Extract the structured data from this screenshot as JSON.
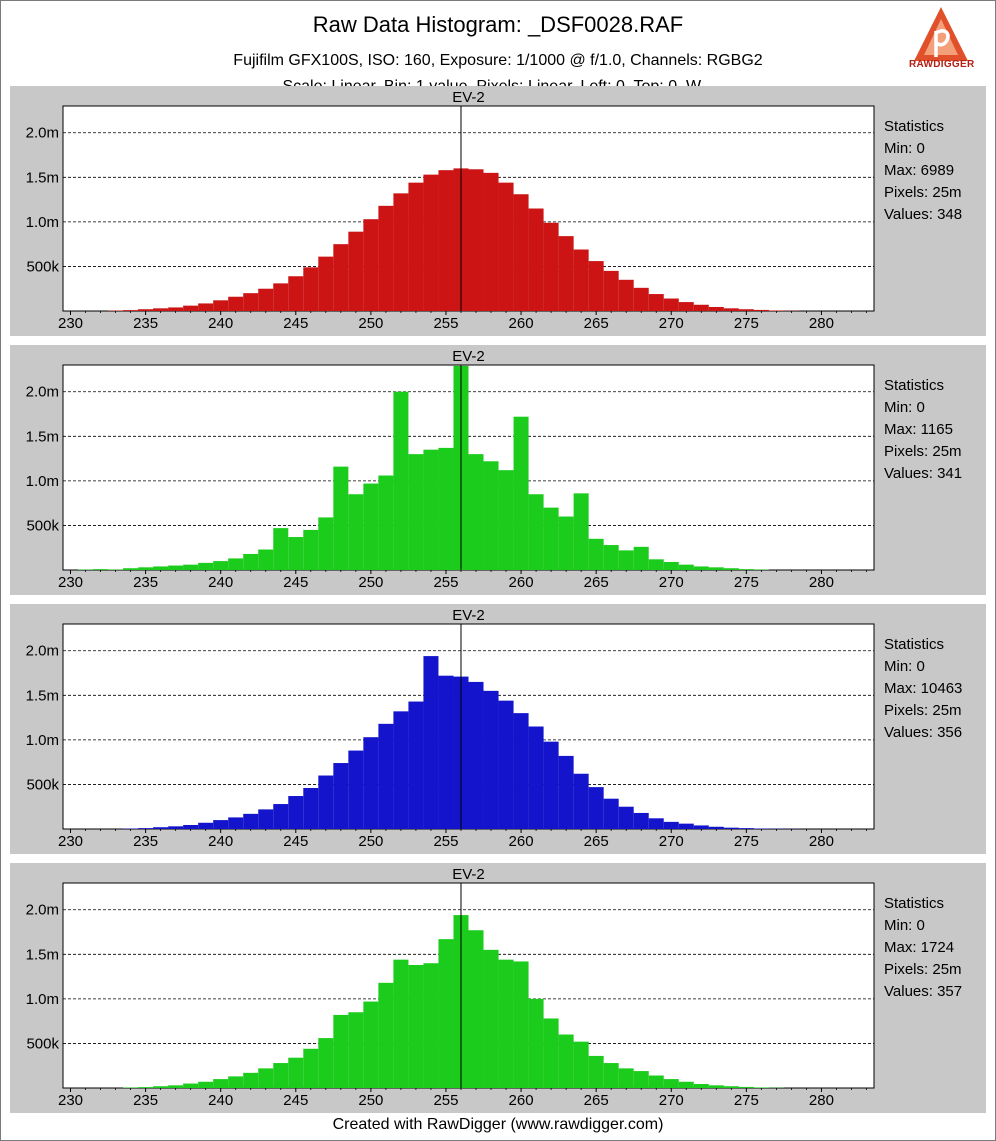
{
  "header": {
    "title": "Raw Data Histogram: _DSF0028.RAF",
    "subtitle": "Fujifilm GFX100S, ISO: 160, Exposure: 1/1000 @ f/1.0, Channels: RGBG2",
    "subtitle2": "Scale: Linear, Bin: 1 value, Pixels: Linear, Left: 0, Top: 0, W..."
  },
  "logo": {
    "text": "RAWDIGGER",
    "icon": "rawdigger-logo-icon",
    "color": "#e0502a"
  },
  "footer": "Created with RawDigger (www.rawdigger.com)",
  "stats_title": "Statistics",
  "chart_data": [
    {
      "type": "bar",
      "channel": "R",
      "title": "EV-2",
      "color": "#cc1414",
      "xlim": [
        229.5,
        283.5
      ],
      "ylim": [
        0,
        2.3
      ],
      "y_unit": "millions",
      "xticks": [
        "230",
        "235",
        "240",
        "245",
        "250",
        "255",
        "260",
        "265",
        "270",
        "275",
        "280"
      ],
      "yticks": [
        "500k",
        "1.0m",
        "1.5m",
        "2.0m"
      ],
      "marker_x": 256,
      "x": [
        233,
        234,
        235,
        236,
        237,
        238,
        239,
        240,
        241,
        242,
        243,
        244,
        245,
        246,
        247,
        248,
        249,
        250,
        251,
        252,
        253,
        254,
        255,
        256,
        257,
        258,
        259,
        260,
        261,
        262,
        263,
        264,
        265,
        266,
        267,
        268,
        269,
        270,
        271,
        272,
        273,
        274,
        275,
        276,
        277,
        278
      ],
      "values": [
        0.005,
        0.01,
        0.02,
        0.03,
        0.04,
        0.06,
        0.085,
        0.12,
        0.16,
        0.2,
        0.25,
        0.31,
        0.39,
        0.49,
        0.61,
        0.75,
        0.89,
        1.03,
        1.18,
        1.32,
        1.44,
        1.53,
        1.58,
        1.6,
        1.59,
        1.55,
        1.44,
        1.31,
        1.15,
        0.99,
        0.84,
        0.69,
        0.56,
        0.45,
        0.35,
        0.26,
        0.19,
        0.14,
        0.1,
        0.07,
        0.045,
        0.03,
        0.02,
        0.012,
        0.006,
        0.003
      ],
      "stats": {
        "min": "Min: 0",
        "max": "Max: 6989",
        "pixels": "Pixels: 25m",
        "values": "Values: 348"
      }
    },
    {
      "type": "bar",
      "channel": "G",
      "title": "EV-2",
      "color": "#1ccc1c",
      "xlim": [
        229.5,
        283.5
      ],
      "ylim": [
        0,
        2.3
      ],
      "y_unit": "millions",
      "xticks": [
        "230",
        "235",
        "240",
        "245",
        "250",
        "255",
        "260",
        "265",
        "270",
        "275",
        "280"
      ],
      "yticks": [
        "500k",
        "1.0m",
        "1.5m",
        "2.0m"
      ],
      "marker_x": 256,
      "x": [
        231,
        232,
        233,
        234,
        235,
        236,
        237,
        238,
        239,
        240,
        241,
        242,
        243,
        244,
        245,
        246,
        247,
        248,
        249,
        250,
        251,
        252,
        253,
        254,
        255,
        256,
        257,
        258,
        259,
        260,
        261,
        262,
        263,
        264,
        265,
        266,
        267,
        268,
        269,
        270,
        271,
        272,
        273,
        274,
        275,
        276
      ],
      "values": [
        0.005,
        0.01,
        0.005,
        0.02,
        0.03,
        0.04,
        0.05,
        0.06,
        0.08,
        0.1,
        0.13,
        0.18,
        0.23,
        0.47,
        0.37,
        0.45,
        0.59,
        1.16,
        0.85,
        0.97,
        1.06,
        2.0,
        1.3,
        1.35,
        1.37,
        2.29,
        1.3,
        1.22,
        1.12,
        1.72,
        0.85,
        0.7,
        0.6,
        0.86,
        0.35,
        0.28,
        0.22,
        0.26,
        0.12,
        0.09,
        0.06,
        0.04,
        0.03,
        0.02,
        0.01,
        0.005
      ],
      "stats": {
        "min": "Min: 0",
        "max": "Max: 1165",
        "pixels": "Pixels: 25m",
        "values": "Values: 341"
      }
    },
    {
      "type": "bar",
      "channel": "B",
      "title": "EV-2",
      "color": "#1414cc",
      "xlim": [
        229.5,
        283.5
      ],
      "ylim": [
        0,
        2.3
      ],
      "y_unit": "millions",
      "xticks": [
        "230",
        "235",
        "240",
        "245",
        "250",
        "255",
        "260",
        "265",
        "270",
        "275",
        "280"
      ],
      "yticks": [
        "500k",
        "1.0m",
        "1.5m",
        "2.0m"
      ],
      "marker_x": 256,
      "x": [
        234,
        235,
        236,
        237,
        238,
        239,
        240,
        241,
        242,
        243,
        244,
        245,
        246,
        247,
        248,
        249,
        250,
        251,
        252,
        253,
        254,
        255,
        256,
        257,
        258,
        259,
        260,
        261,
        262,
        263,
        264,
        265,
        266,
        267,
        268,
        269,
        270,
        271,
        272,
        273,
        274,
        275,
        276,
        277,
        278
      ],
      "values": [
        0.005,
        0.01,
        0.02,
        0.03,
        0.045,
        0.07,
        0.1,
        0.13,
        0.17,
        0.22,
        0.28,
        0.37,
        0.46,
        0.6,
        0.74,
        0.88,
        1.03,
        1.18,
        1.32,
        1.43,
        1.94,
        1.72,
        1.71,
        1.65,
        1.55,
        1.44,
        1.3,
        1.15,
        0.98,
        0.82,
        0.62,
        0.47,
        0.34,
        0.25,
        0.18,
        0.12,
        0.08,
        0.06,
        0.04,
        0.025,
        0.015,
        0.01,
        0.005,
        0.003,
        0.002
      ],
      "stats": {
        "min": "Min: 0",
        "max": "Max: 10463",
        "pixels": "Pixels: 25m",
        "values": "Values: 356"
      }
    },
    {
      "type": "bar",
      "channel": "G2",
      "title": "EV-2",
      "color": "#1ccc1c",
      "xlim": [
        229.5,
        283.5
      ],
      "ylim": [
        0,
        2.3
      ],
      "y_unit": "millions",
      "xticks": [
        "230",
        "235",
        "240",
        "245",
        "250",
        "255",
        "260",
        "265",
        "270",
        "275",
        "280"
      ],
      "yticks": [
        "500k",
        "1.0m",
        "1.5m",
        "2.0m"
      ],
      "marker_x": 256,
      "x": [
        234,
        235,
        236,
        237,
        238,
        239,
        240,
        241,
        242,
        243,
        244,
        245,
        246,
        247,
        248,
        249,
        250,
        251,
        252,
        253,
        254,
        255,
        256,
        257,
        258,
        259,
        260,
        261,
        262,
        263,
        264,
        265,
        266,
        267,
        268,
        269,
        270,
        271,
        272,
        273,
        274,
        275,
        276,
        277
      ],
      "values": [
        0.005,
        0.01,
        0.02,
        0.03,
        0.05,
        0.07,
        0.1,
        0.13,
        0.17,
        0.22,
        0.28,
        0.34,
        0.44,
        0.56,
        0.82,
        0.85,
        0.97,
        1.18,
        1.44,
        1.38,
        1.4,
        1.67,
        1.94,
        1.77,
        1.55,
        1.44,
        1.42,
        1.0,
        0.78,
        0.6,
        0.52,
        0.36,
        0.28,
        0.22,
        0.19,
        0.14,
        0.1,
        0.07,
        0.045,
        0.03,
        0.02,
        0.012,
        0.006,
        0.003
      ],
      "stats": {
        "min": "Min: 0",
        "max": "Max: 1724",
        "pixels": "Pixels: 25m",
        "values": "Values: 357"
      }
    }
  ]
}
